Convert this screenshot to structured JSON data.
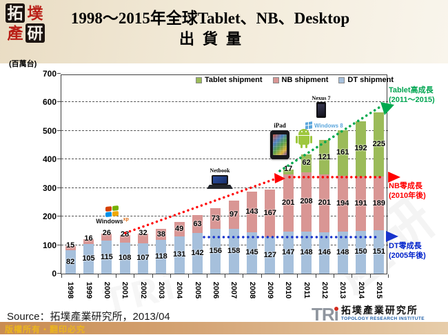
{
  "header": {
    "logo_chars": [
      "拓",
      "墣",
      "產",
      "研"
    ],
    "title_line1": "1998～2015年全球Tablet、NB、Desktop",
    "title_line2": "出貨量"
  },
  "chart": {
    "unit_label": "(百萬台)",
    "legend": [
      {
        "label": "Tablet shipment",
        "color": "#9BBB59"
      },
      {
        "label": "NB shipment",
        "color": "#D99694"
      },
      {
        "label": "DT shipment",
        "color": "#A6C0DC"
      }
    ],
    "annotations": {
      "tablet": {
        "line1": "Tablet高成長",
        "line2": "(2011～2015)",
        "color": "#00A551"
      },
      "nb": {
        "line1": "NB零成長",
        "line2": "(2010年後)",
        "color": "#FF0000"
      },
      "dt": {
        "line1": "DT零成長",
        "line2": "(2005年後)",
        "color": "#0022CC"
      }
    },
    "icons": {
      "windows_xp": "Windows",
      "windows_xp_sup": "xp",
      "netbook": "Netbook",
      "ipad": "iPad",
      "windows8": "Windows 8",
      "nexus7": "Nexus 7"
    }
  },
  "chart_data": {
    "type": "bar",
    "stacked": true,
    "title": "1998～2015年全球Tablet、NB、Desktop出貨量",
    "ylabel": "(百萬台)",
    "ylim": [
      0,
      700
    ],
    "ytick_step": 100,
    "grid": "dashed horizontal",
    "legend_position": "top-inside",
    "categories": [
      "1998",
      "1999",
      "2000",
      "2001",
      "2002",
      "2003",
      "2004",
      "2005",
      "2006",
      "2007",
      "2008",
      "2009",
      "2010",
      "2011",
      "2012",
      "2013",
      "2014",
      "2015"
    ],
    "series": [
      {
        "name": "DT shipment",
        "color": "#A6C0DC",
        "values": [
          82,
          105,
          115,
          108,
          107,
          118,
          131,
          142,
          156,
          158,
          145,
          127,
          147,
          148,
          146,
          148,
          150,
          151
        ]
      },
      {
        "name": "NB shipment",
        "color": "#D99694",
        "values": [
          15,
          16,
          26,
          28,
          32,
          38,
          49,
          63,
          73,
          97,
          143,
          167,
          201,
          208,
          201,
          194,
          191,
          189
        ]
      },
      {
        "name": "Tablet shipment",
        "color": "#9BBB59",
        "values": [
          0,
          0,
          0,
          0,
          0,
          0,
          0,
          0,
          0,
          0,
          0,
          0,
          17,
          62,
          121,
          161,
          192,
          225
        ]
      }
    ],
    "trend_annotations": [
      {
        "text": "Tablet高成長 (2011～2015)",
        "color": "#00A551",
        "style": "green dotted rising arrow 2010→2015"
      },
      {
        "text": "NB零成長 (2010年後)",
        "color": "#FF0000",
        "style": "red dotted rising 2001→2010 then flat arrow"
      },
      {
        "text": "DT零成長 (2005年後)",
        "color": "#0022CC",
        "style": "blue dotted flat arrow 2005→2015"
      }
    ]
  },
  "footer": {
    "source": "Source：拓墣產業研究所，2013/04",
    "copyright": "版權所有‧翻印必究",
    "logo_mark": "TRi",
    "logo_cn": "拓墣產業研究所",
    "logo_en": "TOPOLOGY RESEARCH INSTITUTE"
  },
  "watermark": {
    "text1": "拓墣產研",
    "text2": "TRi"
  }
}
